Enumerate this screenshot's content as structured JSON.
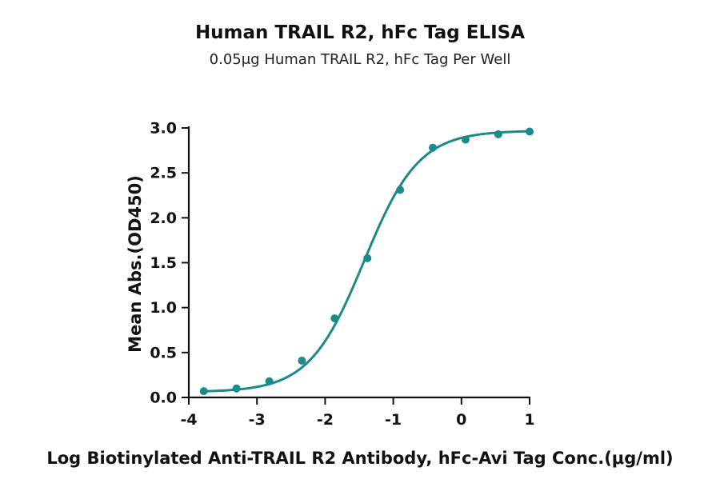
{
  "chart_data": {
    "type": "scatter",
    "title": "Human TRAIL R2, hFc Tag ELISA",
    "subtitle": "0.05μg Human TRAIL R2, hFc Tag Per Well",
    "xlabel": "Log Biotinylated Anti-TRAIL R2 Antibody, hFc-Avi Tag Conc.(μg/ml)",
    "ylabel": "Mean Abs.(OD450)",
    "xlim": [
      -4,
      1
    ],
    "ylim": [
      0,
      3
    ],
    "x_ticks": [
      "-4",
      "-3",
      "-2",
      "-1",
      "0",
      "1"
    ],
    "y_ticks": [
      "0.0",
      "0.5",
      "1.0",
      "1.5",
      "2.0",
      "2.5",
      "3.0"
    ],
    "grid": false,
    "color": "#1a8a8a",
    "series": [
      {
        "x": [
          -3.78,
          -3.3,
          -2.82,
          -2.34,
          -1.86,
          -1.38,
          -0.9,
          -0.42,
          0.06,
          0.54,
          1.0
        ],
        "y": [
          0.07,
          0.1,
          0.18,
          0.41,
          0.88,
          1.55,
          2.31,
          2.78,
          2.87,
          2.93,
          2.96
        ]
      }
    ]
  }
}
